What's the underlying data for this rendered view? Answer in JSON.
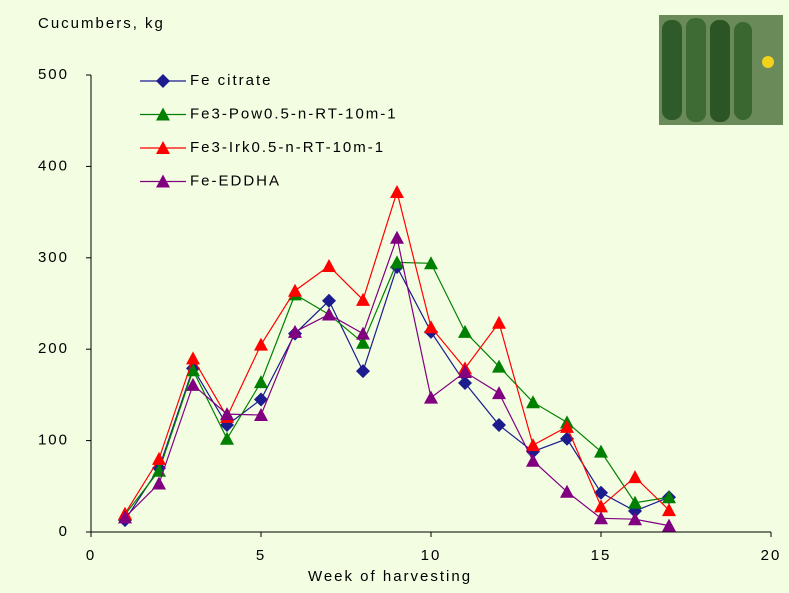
{
  "chart_data": {
    "type": "line",
    "y_label": "Cucumbers, kg",
    "x_label": "Week of harvesting",
    "x": [
      1,
      2,
      3,
      4,
      5,
      6,
      7,
      8,
      9,
      10,
      11,
      12,
      13,
      14,
      15,
      16,
      17
    ],
    "series": [
      {
        "name": "Fe citrate",
        "color": "#1c1c8f",
        "marker": "diamond",
        "values": [
          13,
          70,
          179,
          117,
          145,
          217,
          253,
          176,
          290,
          219,
          163,
          117,
          88,
          102,
          43,
          23,
          38
        ]
      },
      {
        "name": "Fe3-Pow0.5-n-RT-10m-1",
        "color": "#008000",
        "marker": "triangle",
        "values": [
          19,
          67,
          177,
          102,
          164,
          260,
          238,
          207,
          295,
          294,
          219,
          181,
          142,
          120,
          88,
          32,
          38
        ]
      },
      {
        "name": "Fe3-Irk0.5-n-RT-10m-1",
        "color": "#ff0000",
        "marker": "triangle",
        "values": [
          20,
          80,
          190,
          126,
          205,
          264,
          291,
          254,
          372,
          224,
          179,
          229,
          95,
          115,
          28,
          60,
          24
        ]
      },
      {
        "name": "Fe-EDDHA",
        "color": "#800080",
        "marker": "triangle",
        "values": [
          16,
          53,
          161,
          129,
          128,
          219,
          238,
          217,
          322,
          147,
          175,
          152,
          78,
          44,
          15,
          14,
          7
        ]
      }
    ],
    "xlim": [
      0,
      20
    ],
    "xticks": [
      0,
      5,
      10,
      15,
      20
    ],
    "ylim": [
      0,
      500
    ],
    "yticks": [
      0,
      100,
      200,
      300,
      400,
      500
    ]
  }
}
